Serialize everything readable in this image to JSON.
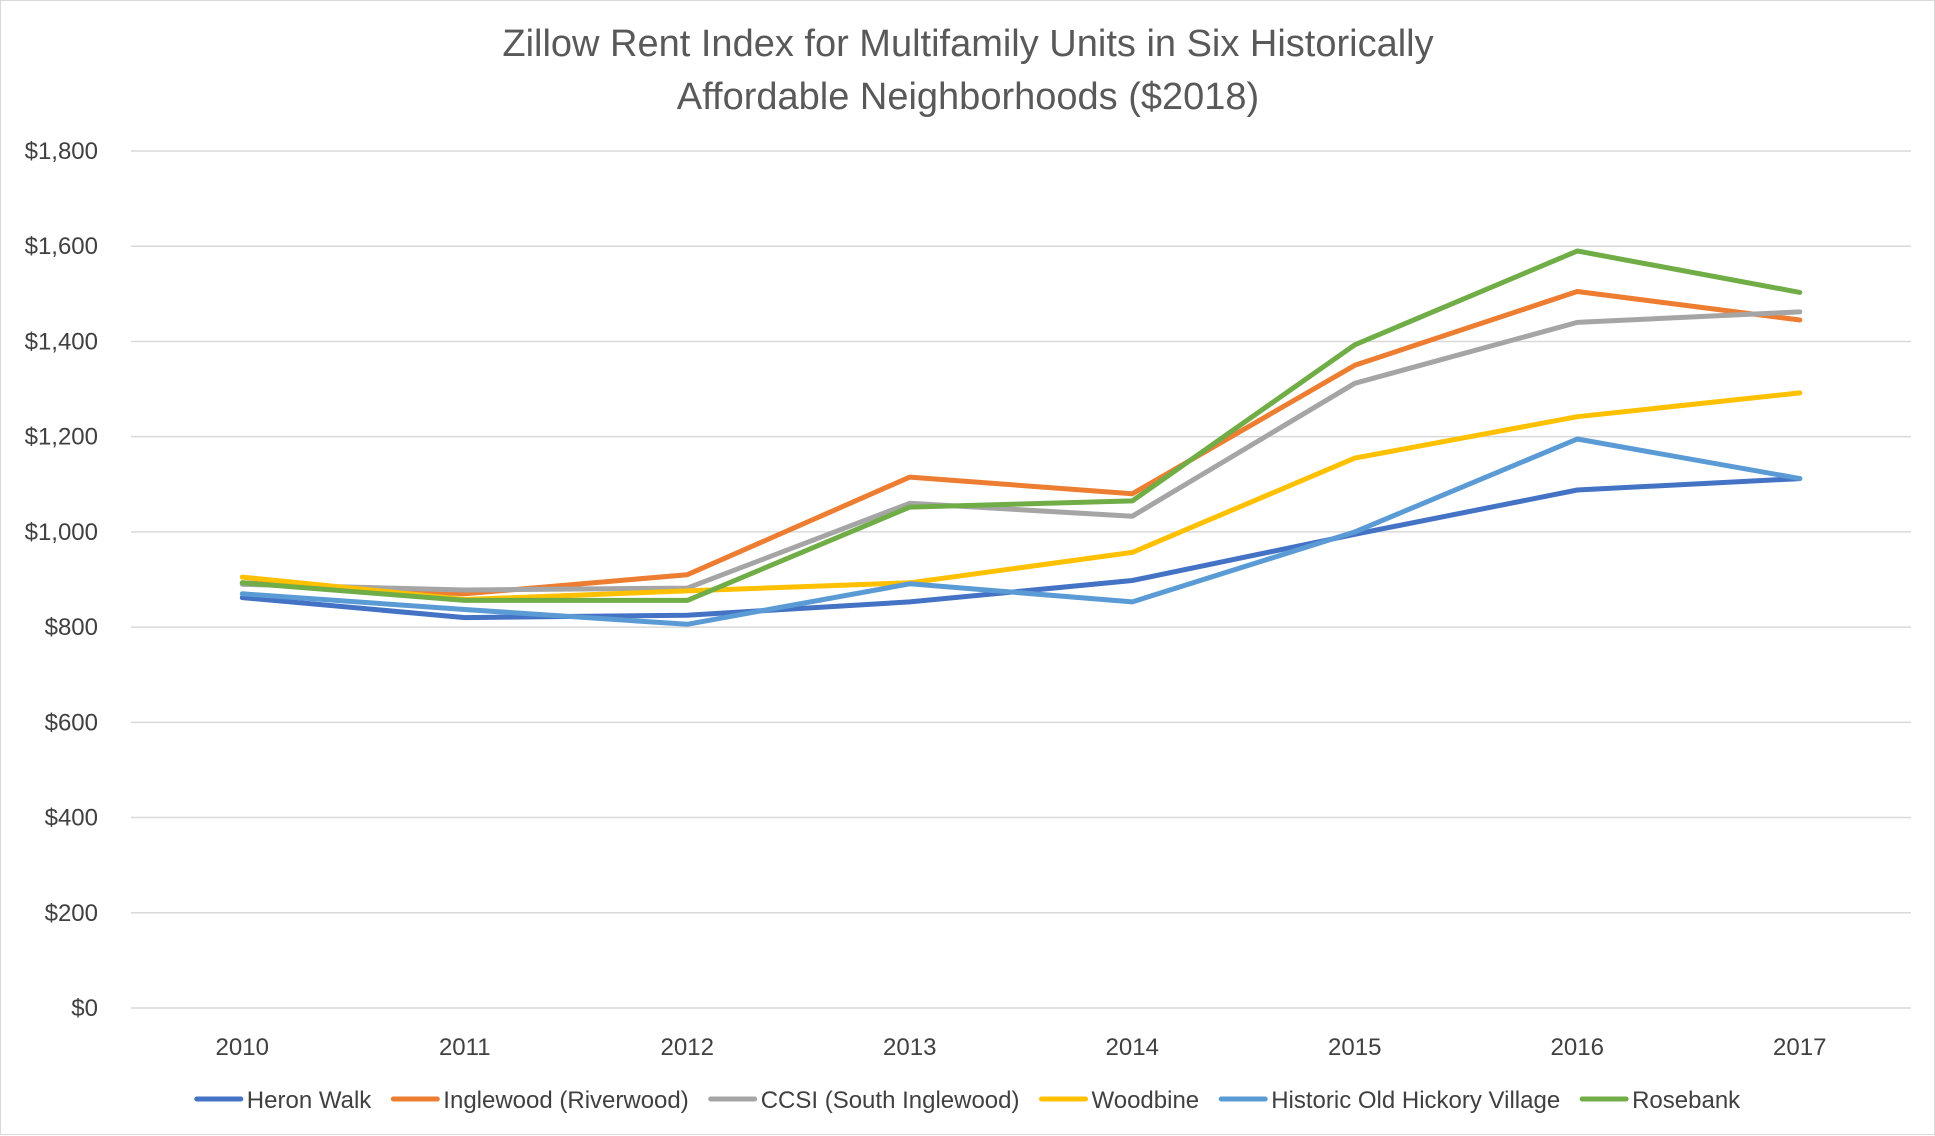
{
  "chart_data": {
    "type": "line",
    "title_lines": [
      "Zillow Rent Index for Multifamily Units in Six Historically",
      "Affordable Neighborhoods ($2018)"
    ],
    "xlabel": "",
    "ylabel": "",
    "categories": [
      "2010",
      "2011",
      "2012",
      "2013",
      "2014",
      "2015",
      "2016",
      "2017"
    ],
    "ylim": [
      0,
      1800
    ],
    "y_ticks": [
      0,
      200,
      400,
      600,
      800,
      1000,
      1200,
      1400,
      1600,
      1800
    ],
    "y_tick_labels": [
      "$0",
      "$200",
      "$400",
      "$600",
      "$800",
      "$1,000",
      "$1,200",
      "$1,400",
      "$1,600",
      "$1,800"
    ],
    "grid": "horizontal",
    "legend_position": "bottom",
    "series": [
      {
        "name": "Heron Walk",
        "color": "#4472C4",
        "values": [
          862,
          820,
          825,
          853,
          898,
          995,
          1088,
          1112
        ]
      },
      {
        "name": "Inglewood (Riverwood)",
        "color": "#ED7D31",
        "values": [
          893,
          870,
          910,
          1115,
          1080,
          1350,
          1505,
          1445
        ]
      },
      {
        "name": "CCSI (South Inglewood)",
        "color": "#A5A5A5",
        "values": [
          890,
          878,
          882,
          1060,
          1033,
          1312,
          1440,
          1462
        ]
      },
      {
        "name": "Woodbine",
        "color": "#FFC000",
        "values": [
          905,
          858,
          876,
          893,
          957,
          1155,
          1242,
          1292
        ]
      },
      {
        "name": "Historic Old Hickory Village",
        "color": "#5B9BD5",
        "values": [
          870,
          837,
          806,
          891,
          853,
          1000,
          1195,
          1112
        ]
      },
      {
        "name": "Rosebank",
        "color": "#70AD47",
        "values": [
          893,
          856,
          856,
          1052,
          1065,
          1393,
          1590,
          1503
        ]
      }
    ]
  }
}
